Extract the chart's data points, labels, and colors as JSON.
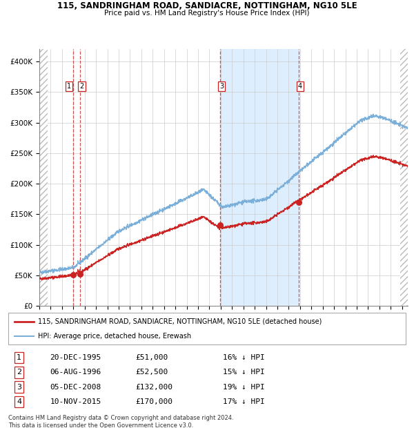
{
  "title_line1": "115, SANDRINGHAM ROAD, SANDIACRE, NOTTINGHAM, NG10 5LE",
  "title_line2": "Price paid vs. HM Land Registry's House Price Index (HPI)",
  "ylim": [
    0,
    420000
  ],
  "yticks": [
    0,
    50000,
    100000,
    150000,
    200000,
    250000,
    300000,
    350000,
    400000
  ],
  "ytick_labels": [
    "£0",
    "£50K",
    "£100K",
    "£150K",
    "£200K",
    "£250K",
    "£300K",
    "£350K",
    "£400K"
  ],
  "hpi_color": "#7aafda",
  "price_color": "#cc2222",
  "sale_dates_num": [
    1995.97,
    1996.59,
    2008.92,
    2015.86
  ],
  "sale_prices": [
    51000,
    52500,
    132000,
    170000
  ],
  "sale_labels": [
    "1",
    "2",
    "3",
    "4"
  ],
  "dashed_line_color": "#cc3333",
  "shade_start": 2008.92,
  "shade_end": 2015.86,
  "shade_color": "#ddeeff",
  "legend_label_price": "115, SANDRINGHAM ROAD, SANDIACRE, NOTTINGHAM, NG10 5LE (detached house)",
  "legend_label_hpi": "HPI: Average price, detached house, Erewash",
  "table_data": [
    [
      "1",
      "20-DEC-1995",
      "£51,000",
      "16% ↓ HPI"
    ],
    [
      "2",
      "06-AUG-1996",
      "£52,500",
      "15% ↓ HPI"
    ],
    [
      "3",
      "05-DEC-2008",
      "£132,000",
      "19% ↓ HPI"
    ],
    [
      "4",
      "10-NOV-2015",
      "£170,000",
      "17% ↓ HPI"
    ]
  ],
  "footnote": "Contains HM Land Registry data © Crown copyright and database right 2024.\nThis data is licensed under the Open Government Licence v3.0.",
  "xlim_start": 1993.0,
  "xlim_end": 2025.5,
  "hatch_left_end": 1993.75,
  "hatch_right_start": 2024.83
}
